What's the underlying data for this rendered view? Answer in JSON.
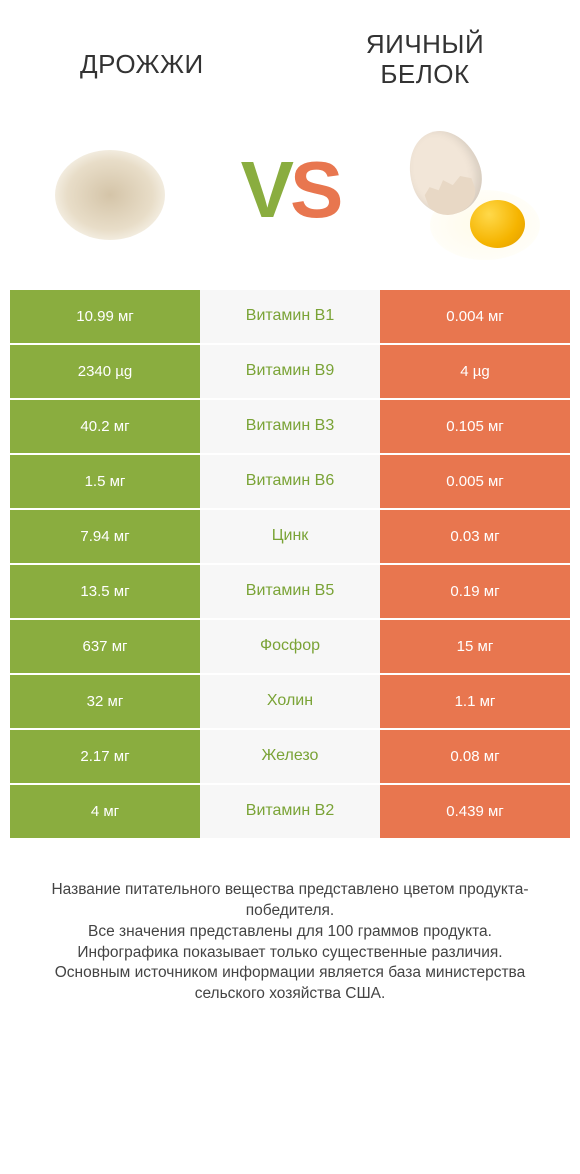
{
  "header": {
    "left_title": "ДРОЖЖИ",
    "right_title": "ЯИЧНЫЙ\nБЕЛОК"
  },
  "vs": {
    "v": "V",
    "s": "S"
  },
  "colors": {
    "green": "#8aad3f",
    "orange": "#e8764f",
    "mid_bg": "#f7f7f7",
    "text": "#333333",
    "white": "#ffffff"
  },
  "table": {
    "left_color": "green",
    "right_color": "orange",
    "mid_text_color_default": "green",
    "rows": [
      {
        "left": "10.99 мг",
        "mid": "Витамин B1",
        "right": "0.004 мг",
        "winner": "left"
      },
      {
        "left": "2340 µg",
        "mid": "Витамин B9",
        "right": "4 µg",
        "winner": "left"
      },
      {
        "left": "40.2 мг",
        "mid": "Витамин B3",
        "right": "0.105 мг",
        "winner": "left"
      },
      {
        "left": "1.5 мг",
        "mid": "Витамин B6",
        "right": "0.005 мг",
        "winner": "left"
      },
      {
        "left": "7.94 мг",
        "mid": "Цинк",
        "right": "0.03 мг",
        "winner": "left"
      },
      {
        "left": "13.5 мг",
        "mid": "Витамин B5",
        "right": "0.19 мг",
        "winner": "left"
      },
      {
        "left": "637 мг",
        "mid": "Фосфор",
        "right": "15 мг",
        "winner": "left"
      },
      {
        "left": "32 мг",
        "mid": "Холин",
        "right": "1.1 мг",
        "winner": "left"
      },
      {
        "left": "2.17 мг",
        "mid": "Железо",
        "right": "0.08 мг",
        "winner": "left"
      },
      {
        "left": "4 мг",
        "mid": "Витамин B2",
        "right": "0.439 мг",
        "winner": "left"
      }
    ]
  },
  "footer": {
    "line1": "Название питательного вещества представлено цветом продукта-победителя.",
    "line2": "Все значения представлены для 100 граммов продукта.",
    "line3": "Инфографика показывает только существенные различия.",
    "line4": "Основным источником информации является база министерства сельского хозяйства США."
  }
}
